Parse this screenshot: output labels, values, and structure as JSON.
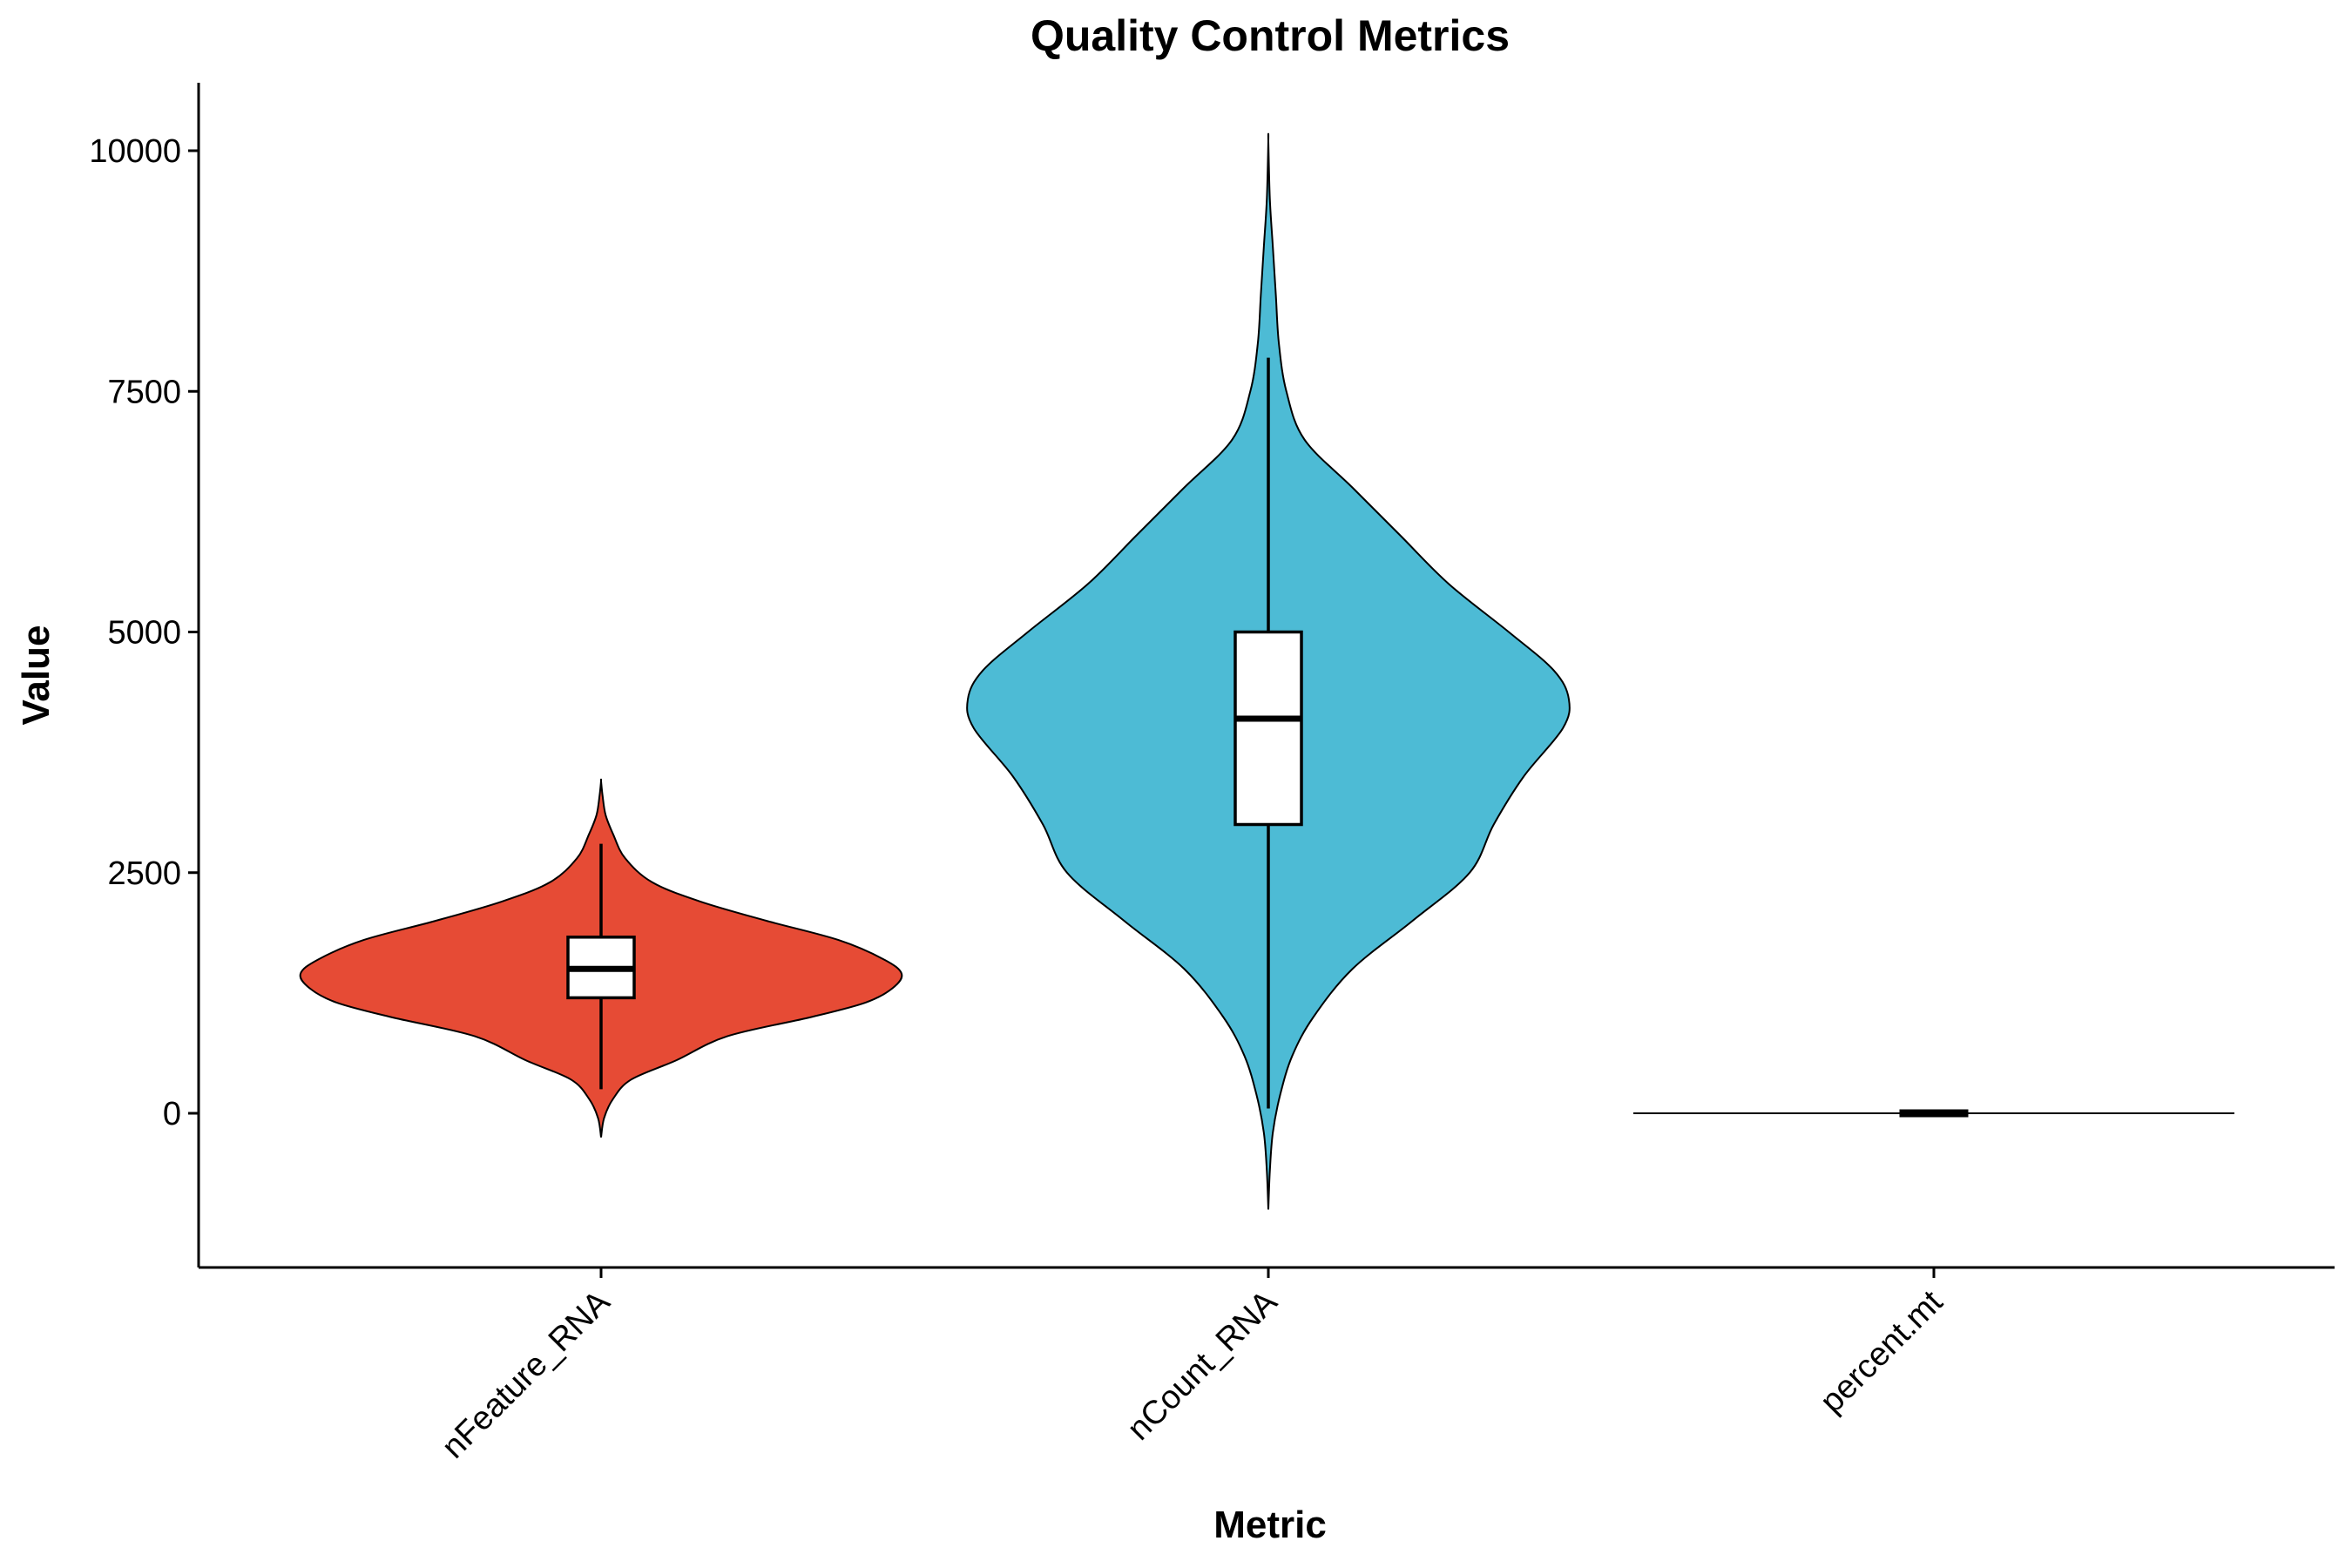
{
  "chart_data": {
    "type": "violin",
    "title": "Quality Control Metrics",
    "xlabel": "Metric",
    "ylabel": "Value",
    "ylim": [
      -1600,
      10700
    ],
    "yticks": [
      0,
      2500,
      5000,
      7500,
      10000
    ],
    "yticklabels": [
      "0",
      "2500",
      "5000",
      "7500",
      "10000"
    ],
    "categories": [
      "nFeature_RNA",
      "nCount_RNA",
      "percent.mt"
    ],
    "legend": "none",
    "grid": false,
    "series": [
      {
        "category": "nFeature_RNA",
        "color": "#E64B35",
        "violin_range": [
          -250,
          3450
        ],
        "density_profile": [
          [
            -250,
            0.0
          ],
          [
            -50,
            0.01
          ],
          [
            150,
            0.04
          ],
          [
            350,
            0.1
          ],
          [
            550,
            0.25
          ],
          [
            800,
            0.42
          ],
          [
            1000,
            0.7
          ],
          [
            1150,
            0.88
          ],
          [
            1300,
            0.97
          ],
          [
            1450,
            1.0
          ],
          [
            1600,
            0.94
          ],
          [
            1800,
            0.79
          ],
          [
            2000,
            0.55
          ],
          [
            2200,
            0.33
          ],
          [
            2400,
            0.17
          ],
          [
            2650,
            0.08
          ],
          [
            2900,
            0.04
          ],
          [
            3100,
            0.015
          ],
          [
            3300,
            0.005
          ],
          [
            3450,
            0.0
          ]
        ],
        "box": {
          "whisker_low": 250,
          "q1": 1200,
          "median": 1500,
          "q3": 1830,
          "whisker_high": 2800
        }
      },
      {
        "category": "nCount_RNA",
        "color": "#4DBBD5",
        "violin_range": [
          -1000,
          10100
        ],
        "density_profile": [
          [
            -1000,
            0.0
          ],
          [
            -600,
            0.005
          ],
          [
            -200,
            0.015
          ],
          [
            200,
            0.04
          ],
          [
            600,
            0.08
          ],
          [
            1000,
            0.15
          ],
          [
            1500,
            0.28
          ],
          [
            2000,
            0.48
          ],
          [
            2500,
            0.67
          ],
          [
            3000,
            0.75
          ],
          [
            3500,
            0.85
          ],
          [
            4000,
            0.98
          ],
          [
            4300,
            1.0
          ],
          [
            4600,
            0.95
          ],
          [
            5000,
            0.8
          ],
          [
            5500,
            0.6
          ],
          [
            6000,
            0.44
          ],
          [
            6500,
            0.28
          ],
          [
            7000,
            0.12
          ],
          [
            7500,
            0.06
          ],
          [
            8000,
            0.035
          ],
          [
            8500,
            0.025
          ],
          [
            9000,
            0.015
          ],
          [
            9500,
            0.005
          ],
          [
            10100,
            0.0
          ]
        ],
        "box": {
          "whisker_low": 50,
          "q1": 3000,
          "median": 4100,
          "q3": 5000,
          "whisker_high": 7850
        }
      },
      {
        "category": "percent.mt",
        "color": "#000000",
        "violin_range": [
          0,
          10
        ],
        "density_profile": [
          [
            0,
            1.0
          ],
          [
            10,
            1.0
          ]
        ],
        "box": {
          "whisker_low": 0,
          "q1": 0,
          "median": 0,
          "q3": 0,
          "whisker_high": 0
        }
      }
    ]
  }
}
